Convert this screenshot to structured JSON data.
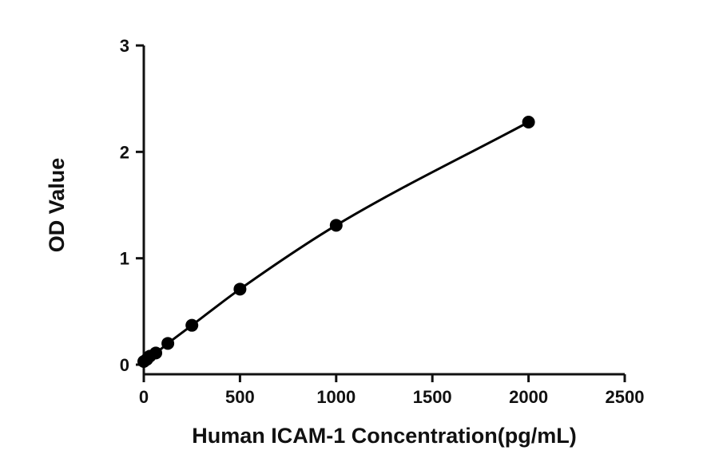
{
  "chart_data": {
    "type": "scatter",
    "title": "",
    "xlabel": "Human ICAM-1 Concentration(pg/mL)",
    "ylabel": "OD Value",
    "xlim": [
      0,
      2500
    ],
    "ylim": [
      0,
      3
    ],
    "xticks": [
      0,
      500,
      1000,
      1500,
      2000,
      2500
    ],
    "yticks": [
      0,
      1,
      2,
      3
    ],
    "grid": false,
    "legend": "none",
    "series": [
      {
        "x": [
          0,
          15.6,
          31.25,
          62.5,
          125,
          250,
          500,
          1000,
          2000
        ],
        "y": [
          0.03,
          0.05,
          0.08,
          0.11,
          0.2,
          0.37,
          0.71,
          1.31,
          2.28
        ],
        "fit": "curve",
        "color": "#000000"
      }
    ]
  }
}
